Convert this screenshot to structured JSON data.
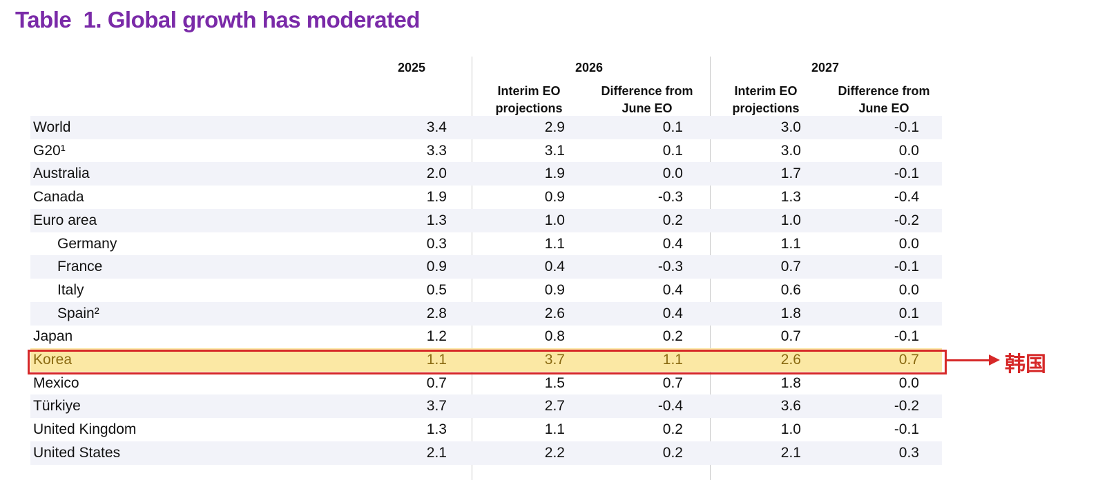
{
  "title": "Table  1. Global growth has moderated",
  "headers": {
    "y2025": "2025",
    "y2026": "2026",
    "y2027": "2027",
    "interim_l1": "Interim EO",
    "interim_l2": "projections",
    "diff_l1": "Difference from",
    "diff_l2": "June EO"
  },
  "rows": [
    {
      "label": "World",
      "indent": false,
      "v": [
        "3.4",
        "2.9",
        "0.1",
        "3.0",
        "-0.1"
      ]
    },
    {
      "label": "G20¹",
      "indent": false,
      "v": [
        "3.3",
        "3.1",
        "0.1",
        "3.0",
        "0.0"
      ]
    },
    {
      "label": "Australia",
      "indent": false,
      "v": [
        "2.0",
        "1.9",
        "0.0",
        "1.7",
        "-0.1"
      ]
    },
    {
      "label": "Canada",
      "indent": false,
      "v": [
        "1.9",
        "0.9",
        "-0.3",
        "1.3",
        "-0.4"
      ]
    },
    {
      "label": "Euro area",
      "indent": false,
      "v": [
        "1.3",
        "1.0",
        "0.2",
        "1.0",
        "-0.2"
      ]
    },
    {
      "label": "Germany",
      "indent": true,
      "v": [
        "0.3",
        "1.1",
        "0.4",
        "1.1",
        "0.0"
      ]
    },
    {
      "label": "France",
      "indent": true,
      "v": [
        "0.9",
        "0.4",
        "-0.3",
        "0.7",
        "-0.1"
      ]
    },
    {
      "label": "Italy",
      "indent": true,
      "v": [
        "0.5",
        "0.9",
        "0.4",
        "0.6",
        "0.0"
      ]
    },
    {
      "label": "Spain²",
      "indent": true,
      "v": [
        "2.8",
        "2.6",
        "0.4",
        "1.8",
        "0.1"
      ]
    },
    {
      "label": "Japan",
      "indent": false,
      "v": [
        "1.2",
        "0.8",
        "0.2",
        "0.7",
        "-0.1"
      ]
    },
    {
      "label": "Korea",
      "indent": false,
      "highlight": true,
      "v": [
        "1.1",
        "3.7",
        "1.1",
        "2.6",
        "0.7"
      ]
    },
    {
      "label": "Mexico",
      "indent": false,
      "v": [
        "0.7",
        "1.5",
        "0.7",
        "1.8",
        "0.0"
      ]
    },
    {
      "label": "Türkiye",
      "indent": false,
      "v": [
        "3.7",
        "2.7",
        "-0.4",
        "3.6",
        "-0.2"
      ]
    },
    {
      "label": "United Kingdom",
      "indent": false,
      "v": [
        "1.3",
        "1.1",
        "0.2",
        "1.0",
        "-0.1"
      ]
    },
    {
      "label": "United States",
      "indent": false,
      "v": [
        "2.1",
        "2.2",
        "0.2",
        "2.1",
        "0.3"
      ]
    }
  ],
  "annotation": "韩国",
  "colors": {
    "title": "#7a2aa8",
    "highlight_fill": "#fbe8a4",
    "highlight_border": "#d62828"
  }
}
